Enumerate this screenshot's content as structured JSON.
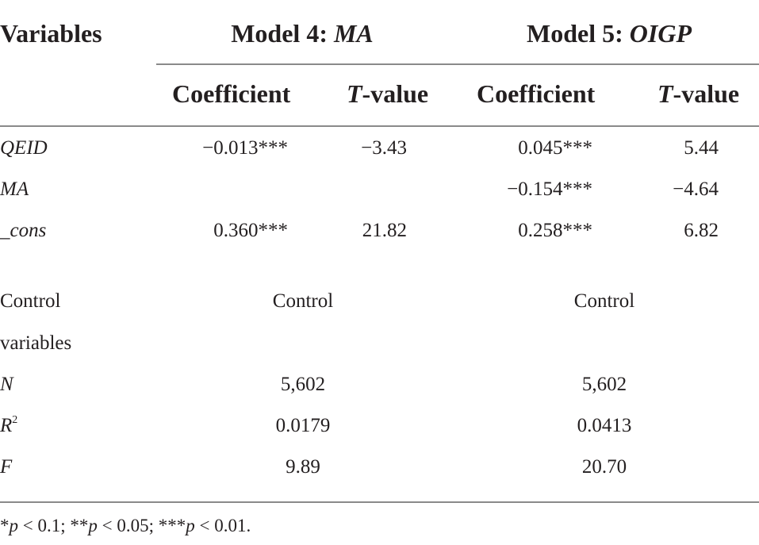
{
  "table": {
    "headers": {
      "variables": "Variables",
      "model4_prefix": "Model 4: ",
      "model4_name": "MA",
      "model5_prefix": "Model 5: ",
      "model5_name": "OIGP",
      "coefficient_1": "Coefficient",
      "tvalue_1_t": "T",
      "tvalue_1_rest": "-value",
      "coefficient_2": "Coefficient",
      "tvalue_2_t": "T",
      "tvalue_2_rest": "-value"
    },
    "rows": [
      {
        "label": "QEID",
        "m4_coef": "−0.013***",
        "m4_t": "−3.43",
        "m5_coef": "0.045***",
        "m5_t": "5.44"
      },
      {
        "label": "MA",
        "m4_coef": "",
        "m4_t": "",
        "m5_coef": "−0.154***",
        "m5_t": "−4.64"
      },
      {
        "label": "_cons",
        "m4_coef": "0.360***",
        "m4_t": "21.82",
        "m5_coef": "0.258***",
        "m5_t": "6.82"
      }
    ],
    "stats": {
      "control_label_line1": "Control",
      "control_label_line2": "variables",
      "control_m4": "Control",
      "control_m5": "Control",
      "n_label": "N",
      "n_m4": "5,602",
      "n_m5": "5,602",
      "r2_label": "R",
      "r2_sup": "2",
      "r2_m4": "0.0179",
      "r2_m5": "0.0413",
      "f_label": "F",
      "f_m4": "9.89",
      "f_m5": "20.70"
    },
    "footnote": {
      "s1": "*",
      "p1": "p",
      "t1": " < 0.1; **",
      "p2": "p",
      "t2": " < 0.05; ***",
      "p3": "p",
      "t3": " < 0.01."
    }
  }
}
